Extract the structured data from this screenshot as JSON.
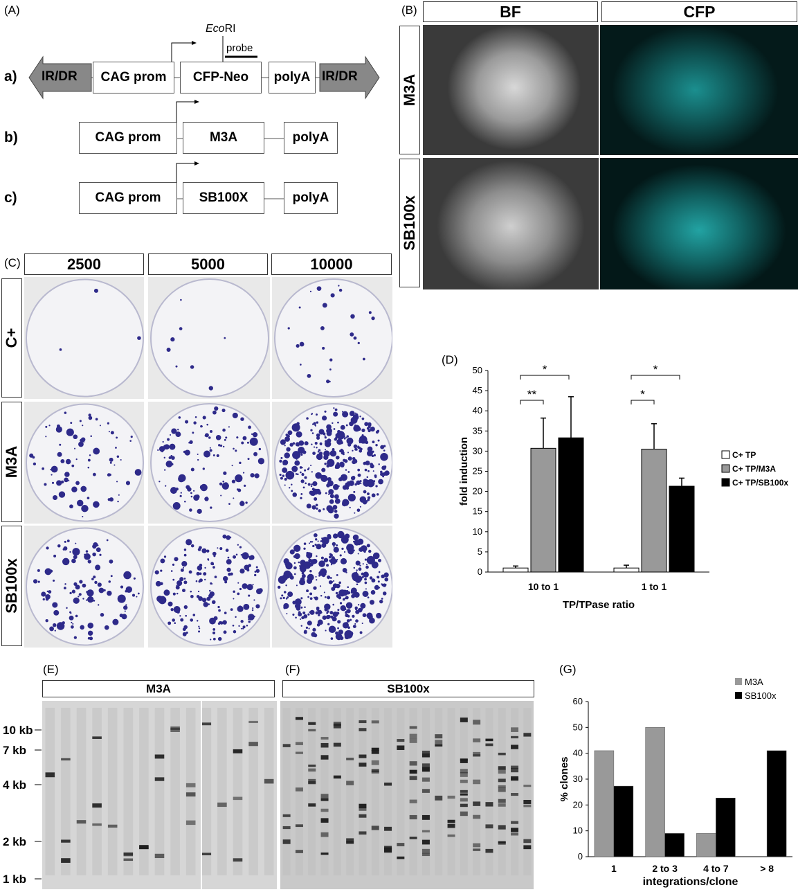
{
  "panelA": {
    "label": "(A)",
    "row_a": {
      "tag": "a)",
      "left_ir": "IR/DR",
      "prom": "CAG prom",
      "gene": "CFP-Neo",
      "polya": "polyA",
      "right_ir": "IR/DR",
      "site_prefix": "Eco",
      "site_suffix": "RI",
      "probe": "probe"
    },
    "row_b": {
      "tag": "b)",
      "prom": "CAG prom",
      "gene": "M3A",
      "polya": "polyA"
    },
    "row_c": {
      "tag": "c)",
      "prom": "CAG prom",
      "gene": "SB100X",
      "polya": "polyA"
    }
  },
  "panelB": {
    "label": "(B)",
    "col1": "BF",
    "col2": "CFP",
    "row1": "M3A",
    "row2": "SB100x"
  },
  "panelC": {
    "label": "(C)",
    "cols": [
      "2500",
      "5000",
      "10000"
    ],
    "rows": [
      "C+",
      "M3A",
      "SB100x"
    ]
  },
  "panelD": {
    "label": "(D)",
    "chart_data": {
      "type": "bar",
      "categories": [
        "10 to 1",
        "1 to 1"
      ],
      "series": [
        {
          "name": "C+ TP",
          "values": [
            1,
            1
          ],
          "errors": [
            0.5,
            0.7
          ],
          "color": "#ffffff"
        },
        {
          "name": "C+ TP/M3A",
          "values": [
            30.7,
            30.5
          ],
          "errors": [
            7.5,
            6.3
          ],
          "color": "#999999"
        },
        {
          "name": "C+ TP/SB100x",
          "values": [
            33.3,
            21.3
          ],
          "errors": [
            10.2,
            2.0
          ],
          "color": "#000000"
        }
      ],
      "xlabel": "TP/TPase ratio",
      "ylabel": "fold induction",
      "ylim": [
        0,
        50
      ],
      "yticks": [
        "0",
        "5",
        "10",
        "15",
        "20",
        "25",
        "30",
        "35",
        "40",
        "45",
        "50"
      ],
      "significance": [
        "*",
        "**",
        "*",
        "*"
      ],
      "legend": "right"
    }
  },
  "panelE": {
    "label": "(E)",
    "header": "M3A",
    "markers": [
      "10 kb",
      "7 kb",
      "4 kb",
      "2 kb",
      "1 kb"
    ]
  },
  "panelF": {
    "label": "(F)",
    "header": "SB100x"
  },
  "panelG": {
    "label": "(G)",
    "chart_data": {
      "type": "bar",
      "categories": [
        "1",
        "2 to 3",
        "4 to 7",
        "> 8"
      ],
      "series": [
        {
          "name": "M3A",
          "values": [
            41,
            50,
            9,
            0
          ],
          "color": "#999999"
        },
        {
          "name": "SB100x",
          "values": [
            27.3,
            9,
            22.7,
            41
          ],
          "color": "#000000"
        }
      ],
      "xlabel": "integrations/clone",
      "ylabel": "% clones",
      "ylim": [
        0,
        60
      ],
      "yticks": [
        "0",
        "10",
        "20",
        "30",
        "40",
        "50",
        "60"
      ],
      "legend": "top-right"
    }
  }
}
